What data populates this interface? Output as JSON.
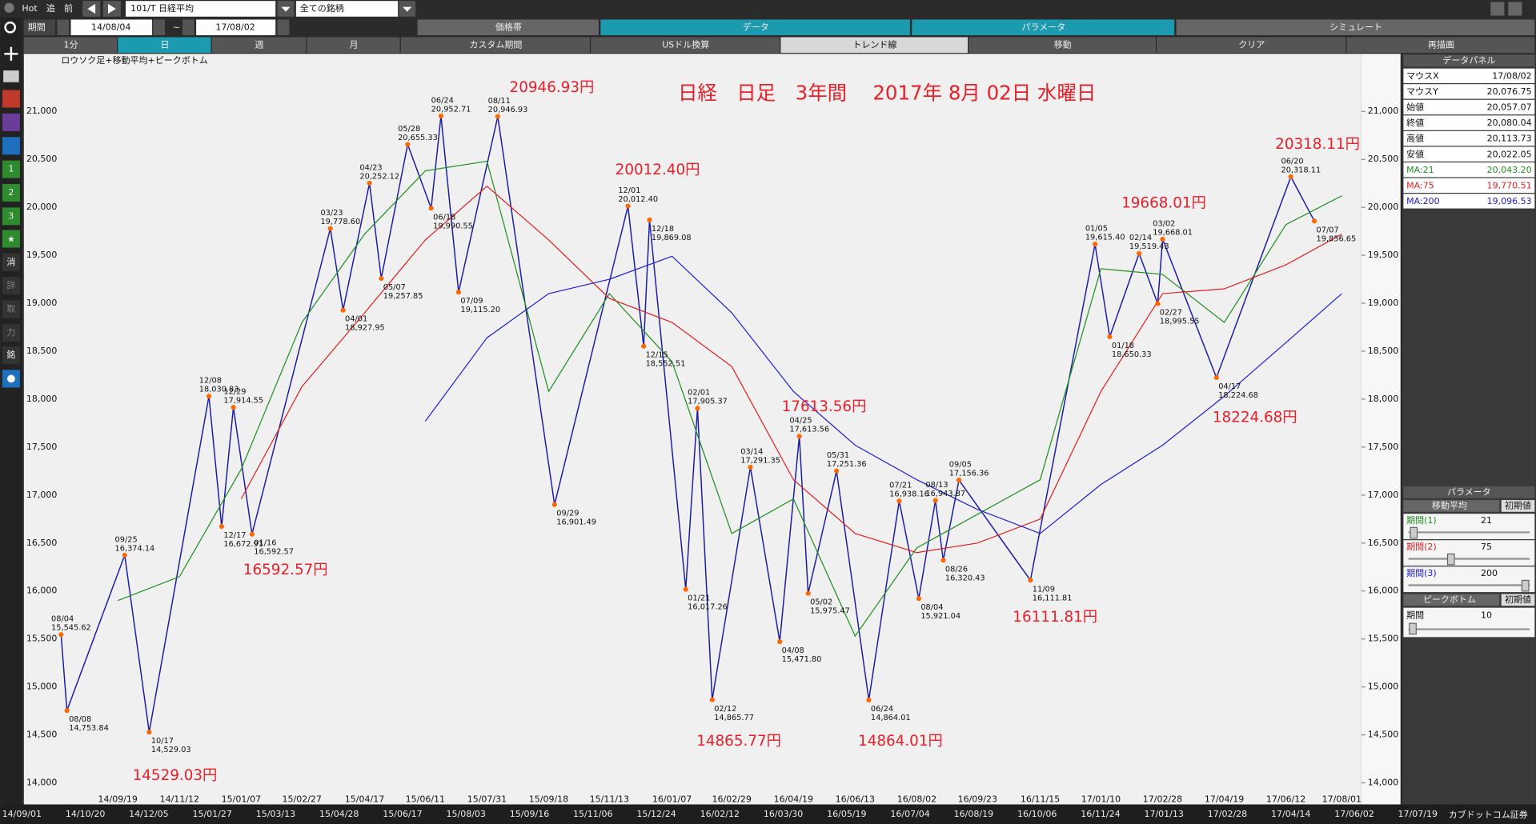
{
  "toolbar": {
    "hot": "Hot",
    "buttons": [
      "追",
      "前"
    ],
    "symbol": "101/T 日経平均",
    "universe": "全ての銘柄",
    "tabs": [
      "価格帯",
      "データ",
      "パラメータ",
      "シミュレート"
    ]
  },
  "period": {
    "label": "期間",
    "from": "14/08/04",
    "sep": "~",
    "to": "17/08/02"
  },
  "buttons": [
    "1分",
    "日",
    "週",
    "月",
    "カスタム期間",
    "USドル換算",
    "トレンド線",
    "移動",
    "クリア",
    "再描画"
  ],
  "sidebar": [
    "1",
    "2",
    "3",
    "消",
    "詳",
    "取",
    "力",
    "銘"
  ],
  "chart_data": {
    "type": "line",
    "title": "日経　日足　3年間　 2017年 8月 02日 水曜日",
    "subtitle": "ロウソク足+移動平均+ピークボトム",
    "x": [
      "14/09/19",
      "14/11/12",
      "15/01/07",
      "15/02/27",
      "15/04/17",
      "15/06/11",
      "15/07/31",
      "15/09/18",
      "15/11/13",
      "16/01/07",
      "16/02/29",
      "16/04/19",
      "16/06/13",
      "16/08/02",
      "16/09/23",
      "16/11/15",
      "17/01/10",
      "17/02/28",
      "17/04/19",
      "17/06/12",
      "17/08/01"
    ],
    "series": [
      {
        "name": "MA:21",
        "color": "#1f8f1f",
        "values": [
          15900,
          16150,
          17270,
          18800,
          19720,
          20380,
          20480,
          18080,
          19100,
          18390,
          16600,
          16960,
          15530,
          16450,
          16800,
          17160,
          19360,
          19300,
          18800,
          19820,
          20120
        ]
      },
      {
        "name": "MA:75",
        "color": "#e02020",
        "values": [
          null,
          null,
          16960,
          18130,
          18900,
          19660,
          20220,
          19660,
          19050,
          18800,
          18340,
          17160,
          16600,
          16400,
          16500,
          16750,
          18080,
          19100,
          19150,
          19400,
          19720
        ]
      },
      {
        "name": "MA:200",
        "color": "#2020d0",
        "values": [
          null,
          null,
          null,
          null,
          null,
          17770,
          18640,
          19100,
          19250,
          19490,
          18900,
          18080,
          17520,
          17160,
          16850,
          16600,
          17110,
          17520,
          18030,
          18590,
          19100
        ]
      }
    ],
    "ylim": [
      13775,
      21600
    ],
    "yticks": [
      {
        "value": 14000,
        "label": "14,000"
      },
      {
        "value": 14500,
        "label": "14,500"
      },
      {
        "value": 15000,
        "label": "15,000"
      },
      {
        "value": 15500,
        "label": "15,500"
      },
      {
        "value": 16000,
        "label": "16,000"
      },
      {
        "value": 16500,
        "label": "16,500"
      },
      {
        "value": 17000,
        "label": "17,000"
      },
      {
        "value": 17500,
        "label": "17,500"
      },
      {
        "value": 18000,
        "label": "18,000"
      },
      {
        "value": 18500,
        "label": "18,500"
      },
      {
        "value": 19000,
        "label": "19,000"
      },
      {
        "value": 19500,
        "label": "19,500"
      },
      {
        "value": 20000,
        "label": "20,000"
      },
      {
        "value": 20500,
        "label": "20,500"
      },
      {
        "value": 21000,
        "label": "21,000"
      }
    ],
    "grid": false,
    "price_color": "#1a1aa0",
    "marker_color": "#ff6600",
    "peaks": [
      {
        "date": "08/04",
        "value": 15545.62,
        "label": "15,545.62"
      },
      {
        "date": "08/08",
        "value": 14753.84,
        "label": "14,753.84"
      },
      {
        "date": "09/25",
        "value": 16374.14,
        "label": "16,374.14"
      },
      {
        "date": "10/17",
        "value": 14529.03,
        "label": "14,529.03"
      },
      {
        "date": "12/08",
        "value": 18030.83,
        "label": "18,030.83"
      },
      {
        "date": "12/17",
        "value": 16672.91,
        "label": "16,672.91"
      },
      {
        "date": "12/29",
        "value": 17914.55,
        "label": "17,914.55"
      },
      {
        "date": "01/16",
        "value": 16592.57,
        "label": "16,592.57"
      },
      {
        "date": "03/23",
        "value": 19778.6,
        "label": "19,778.60"
      },
      {
        "date": "04/01",
        "value": 18927.95,
        "label": "18,927.95"
      },
      {
        "date": "04/23",
        "value": 20252.12,
        "label": "20,252.12"
      },
      {
        "date": "05/07",
        "value": 19257.85,
        "label": "19,257.85"
      },
      {
        "date": "05/28",
        "value": 20655.33,
        "label": "20,655.33"
      },
      {
        "date": "06/18",
        "value": 19990.55,
        "label": "19,990.55"
      },
      {
        "date": "06/24",
        "value": 20952.71,
        "label": "20,952.71"
      },
      {
        "date": "07/09",
        "value": 19115.2,
        "label": "19,115.20"
      },
      {
        "date": "08/11",
        "value": 20946.93,
        "label": "20,946.93"
      },
      {
        "date": "09/29",
        "value": 16901.49,
        "label": "16,901.49"
      },
      {
        "date": "12/01",
        "value": 20012.4,
        "label": "20,012.40"
      },
      {
        "date": "12/15",
        "value": 18552.51,
        "label": "18,552.51"
      },
      {
        "date": "12/18",
        "value": 19869.08,
        "label": "19,869.08"
      },
      {
        "date": "01/21",
        "value": 16017.26,
        "label": "16,017.26"
      },
      {
        "date": "02/01",
        "value": 17905.37,
        "label": "17,905.37"
      },
      {
        "date": "02/12",
        "value": 14865.77,
        "label": "14,865.77"
      },
      {
        "date": "03/14",
        "value": 17291.35,
        "label": "17,291.35"
      },
      {
        "date": "04/08",
        "value": 15471.8,
        "label": "15,471.80"
      },
      {
        "date": "04/25",
        "value": 17613.56,
        "label": "17,613.56"
      },
      {
        "date": "05/02",
        "value": 15975.47,
        "label": "15,975.47"
      },
      {
        "date": "05/31",
        "value": 17251.36,
        "label": "17,251.36"
      },
      {
        "date": "06/24",
        "value": 14864.01,
        "label": "14,864.01"
      },
      {
        "date": "07/21",
        "value": 16938.16,
        "label": "16,938.16"
      },
      {
        "date": "08/04",
        "value": 15921.04,
        "label": "15,921.04"
      },
      {
        "date": "08/13",
        "value": 16943.87,
        "label": "16,943.87"
      },
      {
        "date": "08/26",
        "value": 16320.43,
        "label": "16,320.43"
      },
      {
        "date": "09/05",
        "value": 17156.36,
        "label": "17,156.36"
      },
      {
        "date": "11/09",
        "value": 16111.81,
        "label": "16,111.81"
      },
      {
        "date": "01/05",
        "value": 19615.4,
        "label": "19,615.40"
      },
      {
        "date": "01/18",
        "value": 18650.33,
        "label": "18,650.33"
      },
      {
        "date": "02/14",
        "value": 19519.43,
        "label": "19,519.43"
      },
      {
        "date": "02/27",
        "value": 18995.55,
        "label": "18,995.55"
      },
      {
        "date": "03/02",
        "value": 19668.01,
        "label": "19,668.01"
      },
      {
        "date": "04/17",
        "value": 18224.68,
        "label": "18,224.68"
      },
      {
        "date": "06/20",
        "value": 20318.11,
        "label": "20,318.11"
      },
      {
        "date": "07/07",
        "value": 19856.65,
        "label": "19,856.65"
      }
    ],
    "annotations": [
      "20946.93円",
      "20012.40円",
      "17613.56円",
      "16592.57円",
      "14529.03円",
      "14865.77円",
      "14864.01円",
      "16111.81円",
      "19668.01円",
      "18224.68円",
      "20318.11円"
    ],
    "annotation_color": "#e8202a"
  },
  "data_panel": {
    "title": "データパネル",
    "rows": [
      [
        "マウスX",
        "17/08/02"
      ],
      [
        "マウスY",
        "20,076.75"
      ],
      [
        "始値",
        "20,057.07"
      ],
      [
        "終値",
        "20,080.04"
      ],
      [
        "高値",
        "20,113.73"
      ],
      [
        "安値",
        "20,022.05"
      ]
    ],
    "ma_values": [
      "20,043.20",
      "19,770.51",
      "19,096.53"
    ]
  },
  "parameter_panel": {
    "title": "パラメータ",
    "ma": {
      "title": "移動平均",
      "reset": "初期値",
      "periods": [
        {
          "label": "期間(1)",
          "value": 21
        },
        {
          "label": "期間(2)",
          "value": 75
        },
        {
          "label": "期間(3)",
          "value": 200
        }
      ]
    },
    "peak": {
      "title": "ピークボトム",
      "reset": "初期値",
      "period": {
        "label": "期間",
        "value": 10
      }
    }
  },
  "status_bar": {
    "dates": [
      "14/09/01",
      "14/10/20",
      "14/12/05",
      "15/01/27",
      "15/03/13",
      "15/04/28",
      "15/06/17",
      "15/08/03",
      "15/09/16",
      "15/11/06",
      "15/12/24",
      "16/02/12",
      "16/03/30",
      "16/05/19",
      "16/07/04",
      "16/08/19",
      "16/10/06",
      "16/11/24",
      "17/01/13",
      "17/02/28",
      "17/04/14",
      "17/06/02",
      "17/07/19"
    ],
    "logo": "カブドットコム証券"
  }
}
